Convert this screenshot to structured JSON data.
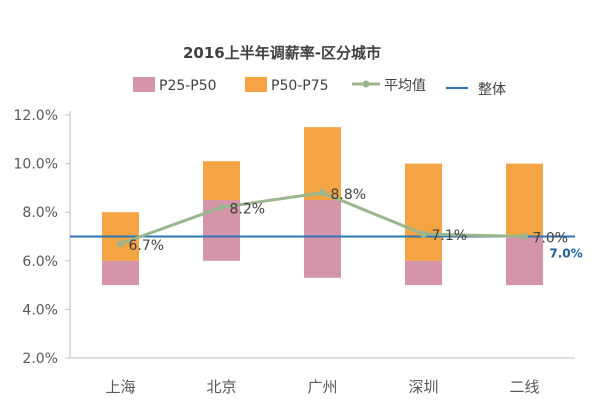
{
  "chart_data": {
    "type": "bar",
    "title": "2016上半年调薪率-区分城市",
    "categories": [
      "上海",
      "北京",
      "广州",
      "深圳",
      "二线"
    ],
    "series": [
      {
        "name": "P25-P50",
        "kind": "range",
        "color": "#d495a8",
        "low": [
          5.0,
          6.0,
          5.3,
          5.0,
          5.0
        ],
        "high": [
          6.0,
          8.5,
          8.5,
          6.0,
          7.0
        ]
      },
      {
        "name": "P50-P75",
        "kind": "range",
        "color": "#f5a443",
        "low": [
          6.0,
          8.5,
          8.5,
          6.0,
          7.0
        ],
        "high": [
          8.0,
          10.1,
          11.5,
          10.0,
          10.0
        ]
      },
      {
        "name": "平均值",
        "kind": "line",
        "color": "#9bb58c",
        "values": [
          6.7,
          8.2,
          8.8,
          7.1,
          7.0
        ],
        "labels": [
          "6.7%",
          "8.2%",
          "8.8%",
          "7.1%",
          "7.0%"
        ]
      },
      {
        "name": "整体",
        "kind": "reference",
        "color": "#2e75b6",
        "value": 7.0,
        "label": "7.0%"
      }
    ],
    "ylim": [
      2.0,
      12.0
    ],
    "yticks": [
      2.0,
      4.0,
      6.0,
      8.0,
      10.0,
      12.0
    ],
    "ytick_labels": [
      "2.0%",
      "4.0%",
      "6.0%",
      "8.0%",
      "10.0%",
      "12.0%"
    ],
    "xlabel": "",
    "ylabel": "",
    "grid": false,
    "legend_position": "top"
  }
}
